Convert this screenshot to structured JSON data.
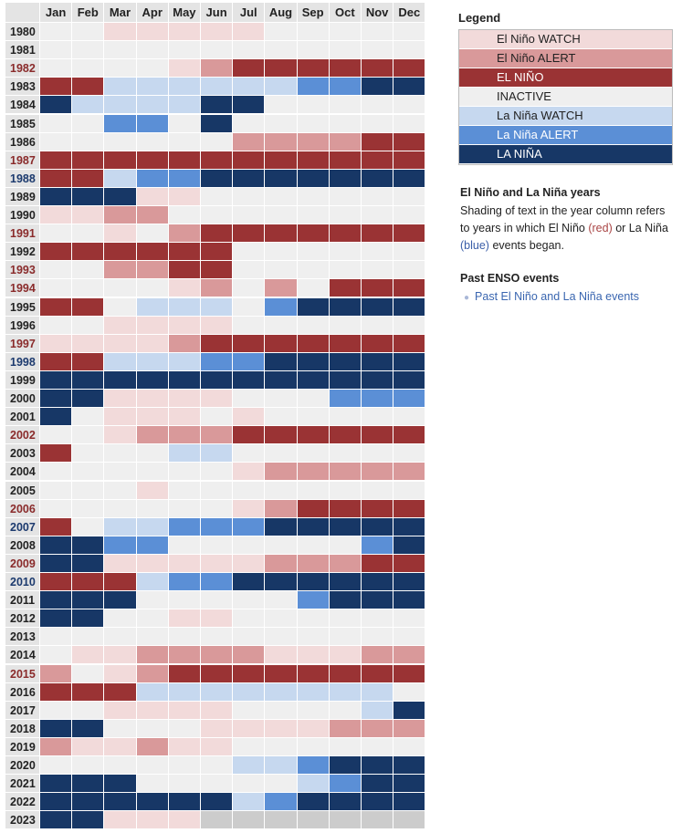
{
  "months": [
    "Jan",
    "Feb",
    "Mar",
    "Apr",
    "May",
    "Jun",
    "Jul",
    "Aug",
    "Sep",
    "Oct",
    "Nov",
    "Dec"
  ],
  "colors": {
    "ew": "#f2dada",
    "ea": "#d9999a",
    "en": "#9a3334",
    "in": "#efefef",
    "lw": "#c6d8ef",
    "la": "#5b8fd6",
    "ln": "#173766",
    "na": "#cccccc",
    "hdr": "#e4e4e4",
    "year_neutral": "#222222",
    "year_red": "#8a2b2b",
    "year_blue": "#1c3a6e"
  },
  "legend": {
    "title": "Legend",
    "items": [
      {
        "code": "ew",
        "label": "El Niño WATCH"
      },
      {
        "code": "ea",
        "label": "El Niño ALERT"
      },
      {
        "code": "en",
        "label": "EL NIÑO"
      },
      {
        "code": "in",
        "label": "INACTIVE"
      },
      {
        "code": "lw",
        "label": "La Niña WATCH"
      },
      {
        "code": "la",
        "label": "La Niña ALERT"
      },
      {
        "code": "ln",
        "label": "LA NIÑA"
      }
    ]
  },
  "info": {
    "title": "El Niño and La Niña years",
    "text1": "Shading of text in the year column refers to years in which El Niño ",
    "red": "(red)",
    "text2": " or La Niña ",
    "blue": "(blue)",
    "text3": " events began."
  },
  "past": {
    "title": "Past ENSO events",
    "link": "Past El Niño and La Niña events"
  },
  "chart_data": {
    "type": "heatmap",
    "xlabels": [
      "Jan",
      "Feb",
      "Mar",
      "Apr",
      "May",
      "Jun",
      "Jul",
      "Aug",
      "Sep",
      "Oct",
      "Nov",
      "Dec"
    ],
    "rows": [
      {
        "year": "1980",
        "class": "n",
        "cells": [
          "in",
          "in",
          "ew",
          "ew",
          "ew",
          "ew",
          "ew",
          "in",
          "in",
          "in",
          "in",
          "in"
        ]
      },
      {
        "year": "1981",
        "class": "n",
        "cells": [
          "in",
          "in",
          "in",
          "in",
          "in",
          "in",
          "in",
          "in",
          "in",
          "in",
          "in",
          "in"
        ]
      },
      {
        "year": "1982",
        "class": "r",
        "cells": [
          "in",
          "in",
          "in",
          "in",
          "ew",
          "ea",
          "en",
          "en",
          "en",
          "en",
          "en",
          "en"
        ]
      },
      {
        "year": "1983",
        "class": "n",
        "cells": [
          "en",
          "en",
          "lw",
          "lw",
          "lw",
          "lw",
          "lw",
          "lw",
          "la",
          "la",
          "ln",
          "ln"
        ]
      },
      {
        "year": "1984",
        "class": "n",
        "cells": [
          "ln",
          "lw",
          "lw",
          "lw",
          "lw",
          "ln",
          "ln",
          "in",
          "in",
          "in",
          "in",
          "in"
        ]
      },
      {
        "year": "1985",
        "class": "n",
        "cells": [
          "in",
          "in",
          "la",
          "la",
          "in",
          "ln",
          "in",
          "in",
          "in",
          "in",
          "in",
          "in"
        ]
      },
      {
        "year": "1986",
        "class": "n",
        "cells": [
          "in",
          "in",
          "in",
          "in",
          "in",
          "in",
          "ea",
          "ea",
          "ea",
          "ea",
          "en",
          "en"
        ]
      },
      {
        "year": "1987",
        "class": "r",
        "cells": [
          "en",
          "en",
          "en",
          "en",
          "en",
          "en",
          "en",
          "en",
          "en",
          "en",
          "en",
          "en"
        ]
      },
      {
        "year": "1988",
        "class": "b",
        "cells": [
          "en",
          "en",
          "lw",
          "la",
          "la",
          "ln",
          "ln",
          "ln",
          "ln",
          "ln",
          "ln",
          "ln"
        ]
      },
      {
        "year": "1989",
        "class": "n",
        "cells": [
          "ln",
          "ln",
          "ln",
          "ew",
          "ew",
          "in",
          "in",
          "in",
          "in",
          "in",
          "in",
          "in"
        ]
      },
      {
        "year": "1990",
        "class": "n",
        "cells": [
          "ew",
          "ew",
          "ea",
          "ea",
          "in",
          "in",
          "in",
          "in",
          "in",
          "in",
          "in",
          "in"
        ]
      },
      {
        "year": "1991",
        "class": "r",
        "cells": [
          "in",
          "in",
          "ew",
          "in",
          "ea",
          "en",
          "en",
          "en",
          "en",
          "en",
          "en",
          "en"
        ]
      },
      {
        "year": "1992",
        "class": "n",
        "cells": [
          "en",
          "en",
          "en",
          "en",
          "en",
          "en",
          "in",
          "in",
          "in",
          "in",
          "in",
          "in"
        ]
      },
      {
        "year": "1993",
        "class": "r",
        "cells": [
          "in",
          "in",
          "ea",
          "ea",
          "en",
          "en",
          "in",
          "in",
          "in",
          "in",
          "in",
          "in"
        ]
      },
      {
        "year": "1994",
        "class": "r",
        "cells": [
          "in",
          "in",
          "in",
          "in",
          "ew",
          "ea",
          "in",
          "ea",
          "in",
          "en",
          "en",
          "en"
        ]
      },
      {
        "year": "1995",
        "class": "n",
        "cells": [
          "en",
          "en",
          "in",
          "lw",
          "lw",
          "lw",
          "in",
          "la",
          "ln",
          "ln",
          "ln",
          "ln"
        ]
      },
      {
        "year": "1996",
        "class": "n",
        "cells": [
          "in",
          "in",
          "ew",
          "ew",
          "ew",
          "ew",
          "in",
          "in",
          "in",
          "in",
          "in",
          "in"
        ]
      },
      {
        "year": "1997",
        "class": "r",
        "cells": [
          "ew",
          "ew",
          "ew",
          "ew",
          "ea",
          "en",
          "en",
          "en",
          "en",
          "en",
          "en",
          "en"
        ]
      },
      {
        "year": "1998",
        "class": "b",
        "cells": [
          "en",
          "en",
          "lw",
          "lw",
          "lw",
          "la",
          "la",
          "ln",
          "ln",
          "ln",
          "ln",
          "ln"
        ]
      },
      {
        "year": "1999",
        "class": "n",
        "cells": [
          "ln",
          "ln",
          "ln",
          "ln",
          "ln",
          "ln",
          "ln",
          "ln",
          "ln",
          "ln",
          "ln",
          "ln"
        ]
      },
      {
        "year": "2000",
        "class": "n",
        "cells": [
          "ln",
          "ln",
          "ew",
          "ew",
          "ew",
          "ew",
          "in",
          "in",
          "in",
          "la",
          "la",
          "la"
        ]
      },
      {
        "year": "2001",
        "class": "n",
        "cells": [
          "ln",
          "in",
          "ew",
          "ew",
          "ew",
          "in",
          "ew",
          "in",
          "in",
          "in",
          "in",
          "in"
        ]
      },
      {
        "year": "2002",
        "class": "r",
        "cells": [
          "in",
          "in",
          "ew",
          "ea",
          "ea",
          "ea",
          "en",
          "en",
          "en",
          "en",
          "en",
          "en"
        ]
      },
      {
        "year": "2003",
        "class": "n",
        "cells": [
          "en",
          "in",
          "in",
          "in",
          "lw",
          "lw",
          "in",
          "in",
          "in",
          "in",
          "in",
          "in"
        ]
      },
      {
        "year": "2004",
        "class": "n",
        "cells": [
          "in",
          "in",
          "in",
          "in",
          "in",
          "in",
          "ew",
          "ea",
          "ea",
          "ea",
          "ea",
          "ea"
        ]
      },
      {
        "year": "2005",
        "class": "n",
        "cells": [
          "in",
          "in",
          "in",
          "ew",
          "in",
          "in",
          "in",
          "in",
          "in",
          "in",
          "in",
          "in"
        ]
      },
      {
        "year": "2006",
        "class": "r",
        "cells": [
          "in",
          "in",
          "in",
          "in",
          "in",
          "in",
          "ew",
          "ea",
          "en",
          "en",
          "en",
          "en"
        ]
      },
      {
        "year": "2007",
        "class": "b",
        "cells": [
          "en",
          "in",
          "lw",
          "lw",
          "la",
          "la",
          "la",
          "ln",
          "ln",
          "ln",
          "ln",
          "ln"
        ]
      },
      {
        "year": "2008",
        "class": "n",
        "cells": [
          "ln",
          "ln",
          "la",
          "la",
          "in",
          "in",
          "in",
          "in",
          "in",
          "in",
          "la",
          "ln"
        ]
      },
      {
        "year": "2009",
        "class": "r",
        "cells": [
          "ln",
          "ln",
          "ew",
          "ew",
          "ew",
          "ew",
          "ew",
          "ea",
          "ea",
          "ea",
          "en",
          "en"
        ]
      },
      {
        "year": "2010",
        "class": "b",
        "cells": [
          "en",
          "en",
          "en",
          "lw",
          "la",
          "la",
          "ln",
          "ln",
          "ln",
          "ln",
          "ln",
          "ln"
        ]
      },
      {
        "year": "2011",
        "class": "n",
        "cells": [
          "ln",
          "ln",
          "ln",
          "in",
          "in",
          "in",
          "in",
          "in",
          "la",
          "ln",
          "ln",
          "ln"
        ]
      },
      {
        "year": "2012",
        "class": "n",
        "cells": [
          "ln",
          "ln",
          "in",
          "in",
          "ew",
          "ew",
          "in",
          "in",
          "in",
          "in",
          "in",
          "in"
        ]
      },
      {
        "year": "2013",
        "class": "n",
        "cells": [
          "in",
          "in",
          "in",
          "in",
          "in",
          "in",
          "in",
          "in",
          "in",
          "in",
          "in",
          "in"
        ]
      },
      {
        "year": "2014",
        "class": "n",
        "cells": [
          "in",
          "ew",
          "ew",
          "ea",
          "ea",
          "ea",
          "ea",
          "ew",
          "ew",
          "ew",
          "ea",
          "ea"
        ]
      },
      {
        "year": "2015",
        "class": "r",
        "cells": [
          "ea",
          "in",
          "ew",
          "ea",
          "en",
          "en",
          "en",
          "en",
          "en",
          "en",
          "en",
          "en"
        ]
      },
      {
        "year": "2016",
        "class": "n",
        "cells": [
          "en",
          "en",
          "en",
          "lw",
          "lw",
          "lw",
          "lw",
          "lw",
          "lw",
          "lw",
          "lw",
          "in"
        ]
      },
      {
        "year": "2017",
        "class": "n",
        "cells": [
          "in",
          "in",
          "ew",
          "ew",
          "ew",
          "ew",
          "in",
          "in",
          "in",
          "in",
          "lw",
          "ln"
        ]
      },
      {
        "year": "2018",
        "class": "n",
        "cells": [
          "ln",
          "ln",
          "in",
          "in",
          "in",
          "ew",
          "ew",
          "ew",
          "ew",
          "ea",
          "ea",
          "ea"
        ]
      },
      {
        "year": "2019",
        "class": "n",
        "cells": [
          "ea",
          "ew",
          "ew",
          "ea",
          "ew",
          "ew",
          "in",
          "in",
          "in",
          "in",
          "in",
          "in"
        ]
      },
      {
        "year": "2020",
        "class": "n",
        "cells": [
          "in",
          "in",
          "in",
          "in",
          "in",
          "in",
          "lw",
          "lw",
          "la",
          "ln",
          "ln",
          "ln"
        ]
      },
      {
        "year": "2021",
        "class": "n",
        "cells": [
          "ln",
          "ln",
          "ln",
          "in",
          "in",
          "in",
          "in",
          "in",
          "lw",
          "la",
          "ln",
          "ln"
        ]
      },
      {
        "year": "2022",
        "class": "n",
        "cells": [
          "ln",
          "ln",
          "ln",
          "ln",
          "ln",
          "ln",
          "lw",
          "la",
          "ln",
          "ln",
          "ln",
          "ln"
        ]
      },
      {
        "year": "2023",
        "class": "n",
        "cells": [
          "ln",
          "ln",
          "ew",
          "ew",
          "ew",
          "na",
          "na",
          "na",
          "na",
          "na",
          "na",
          "na"
        ]
      }
    ]
  }
}
